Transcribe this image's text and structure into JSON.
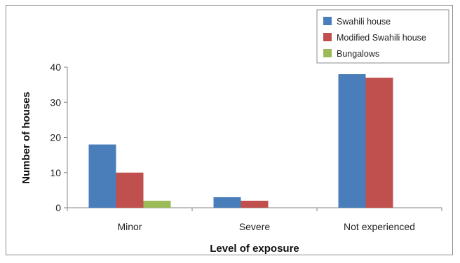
{
  "chart_data": {
    "type": "bar",
    "categories": [
      "Minor",
      "Severe",
      "Not experienced"
    ],
    "series": [
      {
        "name": "Swahili house",
        "values": [
          18,
          3,
          38
        ],
        "color": "#4a7ebb"
      },
      {
        "name": "Modified Swahili house",
        "values": [
          10,
          2,
          37
        ],
        "color": "#c0504d"
      },
      {
        "name": "Bungalows",
        "values": [
          2,
          0,
          0
        ],
        "color": "#9bbb59"
      }
    ],
    "xlabel": "Level of exposure",
    "ylabel": "Number of houses",
    "ylim": [
      0,
      40
    ],
    "yticks": [
      0,
      10,
      20,
      30,
      40
    ],
    "grid": false,
    "legend_position": "top-right"
  }
}
